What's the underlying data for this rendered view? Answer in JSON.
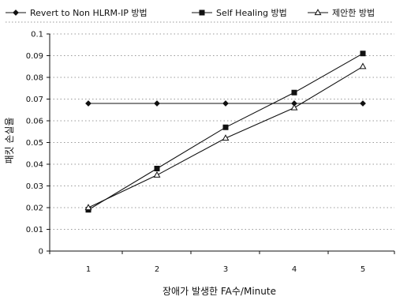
{
  "chart_data": {
    "type": "line",
    "categories": [
      "1",
      "2",
      "3",
      "4",
      "5"
    ],
    "xlabel": "장애가 발생한 FA수/Minute",
    "ylabel": "패킷 손실율",
    "ylim": [
      0,
      0.1
    ],
    "yticks": [
      "0",
      "0.01",
      "0.02",
      "0.03",
      "0.04",
      "0.05",
      "0.06",
      "0.07",
      "0.08",
      "0.09",
      "0.1"
    ],
    "grid": "horizontal dotted",
    "legend_position": "top",
    "series": [
      {
        "name": "Revert to Non HLRM-IP 방법",
        "marker": "diamond",
        "values": [
          0.068,
          0.068,
          0.068,
          0.068,
          0.068
        ]
      },
      {
        "name": "Self Healing 방법",
        "marker": "square",
        "values": [
          0.019,
          0.038,
          0.057,
          0.073,
          0.091
        ]
      },
      {
        "name": "제안한 방법",
        "marker": "triangle",
        "values": [
          0.02,
          0.035,
          0.052,
          0.066,
          0.085
        ]
      }
    ],
    "colors": {
      "line": "#111111",
      "grid": "#9a9a9a",
      "background": "#ffffff"
    }
  }
}
